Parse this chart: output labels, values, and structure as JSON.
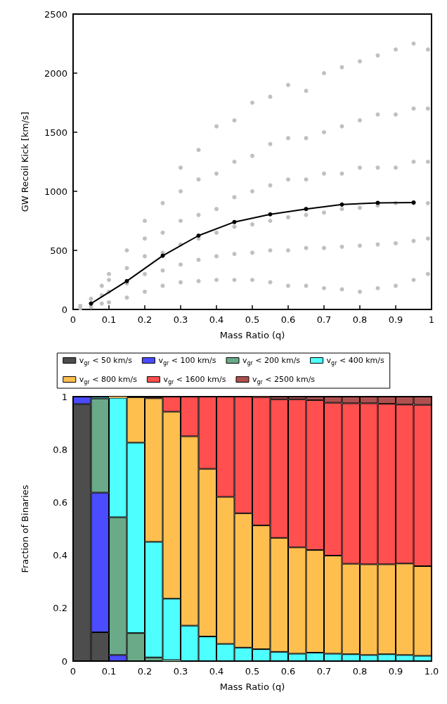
{
  "chart_data": [
    {
      "type": "scatter",
      "xlabel": "Mass Ratio (q)",
      "ylabel": "GW Recoil Kick [km/s]",
      "xlim": [
        0,
        1
      ],
      "xticks": [
        0,
        0.1,
        0.2,
        0.3,
        0.4,
        0.5,
        0.6,
        0.7,
        0.8,
        0.9,
        1
      ],
      "ylim": [
        0,
        2500
      ],
      "yticks": [
        0,
        500,
        1000,
        1500,
        2000,
        2500
      ],
      "grid": false,
      "legend": false,
      "series": [
        {
          "type": "scatter",
          "color": "#c0c0c0",
          "marker": "circle",
          "x": [
            0.02,
            0.02,
            0.05,
            0.05,
            0.05,
            0.08,
            0.08,
            0.08,
            0.1,
            0.1,
            0.1,
            0.1,
            0.15,
            0.15,
            0.15,
            0.15,
            0.2,
            0.2,
            0.2,
            0.2,
            0.2,
            0.25,
            0.25,
            0.25,
            0.25,
            0.25,
            0.3,
            0.3,
            0.3,
            0.3,
            0.3,
            0.3,
            0.35,
            0.35,
            0.35,
            0.35,
            0.35,
            0.35,
            0.4,
            0.4,
            0.4,
            0.4,
            0.4,
            0.4,
            0.45,
            0.45,
            0.45,
            0.45,
            0.45,
            0.45,
            0.5,
            0.5,
            0.5,
            0.5,
            0.5,
            0.5,
            0.55,
            0.55,
            0.55,
            0.55,
            0.55,
            0.55,
            0.6,
            0.6,
            0.6,
            0.6,
            0.6,
            0.6,
            0.65,
            0.65,
            0.65,
            0.65,
            0.65,
            0.65,
            0.7,
            0.7,
            0.7,
            0.7,
            0.7,
            0.7,
            0.75,
            0.75,
            0.75,
            0.75,
            0.75,
            0.75,
            0.8,
            0.8,
            0.8,
            0.8,
            0.8,
            0.8,
            0.85,
            0.85,
            0.85,
            0.85,
            0.85,
            0.85,
            0.9,
            0.9,
            0.9,
            0.9,
            0.9,
            0.9,
            0.95,
            0.95,
            0.95,
            0.95,
            0.95,
            0.95,
            0.99,
            0.99,
            0.99,
            0.99,
            0.99,
            0.99
          ],
          "values": [
            10,
            30,
            20,
            50,
            90,
            50,
            120,
            200,
            60,
            150,
            250,
            300,
            100,
            220,
            350,
            500,
            150,
            300,
            450,
            600,
            750,
            200,
            330,
            480,
            650,
            900,
            230,
            380,
            550,
            750,
            1000,
            1200,
            240,
            420,
            600,
            800,
            1100,
            1350,
            250,
            450,
            650,
            850,
            1150,
            1550,
            250,
            470,
            700,
            950,
            1250,
            1600,
            250,
            480,
            720,
            1000,
            1300,
            1750,
            230,
            500,
            750,
            1050,
            1400,
            1800,
            200,
            500,
            780,
            1100,
            1450,
            1900,
            200,
            520,
            800,
            1100,
            1450,
            1850,
            180,
            520,
            820,
            1150,
            1500,
            2000,
            170,
            530,
            850,
            1150,
            1550,
            2050,
            150,
            540,
            860,
            1200,
            1600,
            2100,
            180,
            550,
            880,
            1200,
            1650,
            2150,
            200,
            560,
            900,
            1200,
            1650,
            2200,
            250,
            580,
            900,
            1250,
            1700,
            2250,
            300,
            600,
            900,
            1250,
            1700,
            2200
          ]
        },
        {
          "type": "line",
          "color": "#000000",
          "marker": "circle",
          "line_style": "solid",
          "x": [
            0.05,
            0.15,
            0.25,
            0.35,
            0.45,
            0.55,
            0.65,
            0.75,
            0.85,
            0.95
          ],
          "values": [
            50,
            240,
            455,
            625,
            740,
            805,
            850,
            888,
            902,
            905
          ]
        }
      ]
    },
    {
      "type": "bar",
      "stacked": true,
      "xlabel": "Mass Ratio (q)",
      "ylabel": "Fraction of Binaries",
      "x": [
        0.025,
        0.075,
        0.125,
        0.175,
        0.225,
        0.275,
        0.325,
        0.375,
        0.425,
        0.475,
        0.525,
        0.575,
        0.625,
        0.675,
        0.725,
        0.775,
        0.825,
        0.875,
        0.925,
        0.975
      ],
      "xlim": [
        0,
        1
      ],
      "xticks": [
        0,
        0.1,
        0.2,
        0.3,
        0.4,
        0.5,
        0.6,
        0.7,
        0.8,
        0.9,
        {
          "value": 1,
          "label": "1.0"
        }
      ],
      "ylim": [
        0,
        1
      ],
      "yticks": [
        0,
        0.2,
        0.4,
        0.6,
        0.8,
        1
      ],
      "grid": false,
      "legend": "top",
      "series": [
        {
          "name": "v$_{gr}$ < 50 km/s",
          "color": "#4d4d4d",
          "values": [
            0.972,
            0.109,
            0,
            0,
            0,
            0,
            0,
            0,
            0,
            0,
            0,
            0,
            0,
            0,
            0,
            0,
            0,
            0,
            0,
            0
          ]
        },
        {
          "name": "v$_{gr}$ < 100 km/s",
          "color": "#4b4bff",
          "values": [
            0.028,
            0.528,
            0.023,
            0,
            0,
            0,
            0,
            0,
            0,
            0,
            0,
            0,
            0,
            0,
            0,
            0,
            0,
            0,
            0,
            0
          ]
        },
        {
          "name": "v$_{gr}$ < 200 km/s",
          "color": "#6aaa88",
          "values": [
            0,
            0.356,
            0.521,
            0.106,
            0.014,
            0.004,
            0,
            0,
            0,
            0,
            0,
            0,
            0,
            0,
            0,
            0,
            0,
            0,
            0,
            0
          ]
        },
        {
          "name": "v$_{gr}$ < 400 km/s",
          "color": "#4dffff",
          "values": [
            0,
            0.007,
            0.452,
            0.72,
            0.437,
            0.232,
            0.134,
            0.093,
            0.065,
            0.051,
            0.045,
            0.035,
            0.028,
            0.032,
            0.028,
            0.026,
            0.023,
            0.026,
            0.023,
            0.02
          ]
        },
        {
          "name": "v$_{gr}$ < 800 km/s",
          "color": "#ffbf4f",
          "values": [
            0,
            0,
            0.004,
            0.172,
            0.543,
            0.707,
            0.716,
            0.634,
            0.556,
            0.508,
            0.468,
            0.431,
            0.402,
            0.388,
            0.371,
            0.342,
            0.343,
            0.34,
            0.346,
            0.339
          ]
        },
        {
          "name": "v$_{gr}$ < 1600 km/s",
          "color": "#ff4f4f",
          "values": [
            0,
            0,
            0,
            null,
            0.006,
            0.057,
            0.15,
            0.273,
            0.379,
            0.441,
            0.485,
            0.524,
            0.56,
            0.567,
            0.578,
            0.607,
            0.609,
            0.607,
            0.601,
            0.61
          ]
        },
        {
          "name": "v$_{gr}$ < 2500 km/s",
          "color": "#b04f4f",
          "values": [
            0,
            0,
            0,
            0,
            0,
            0,
            0,
            0,
            0,
            0,
            0.002,
            0.01,
            0.01,
            0.013,
            0.023,
            0.025,
            0.025,
            0.027,
            0.03,
            0.031
          ]
        }
      ]
    }
  ]
}
